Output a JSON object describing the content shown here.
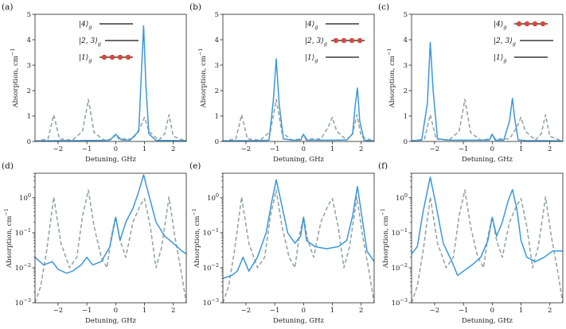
{
  "colors": {
    "solid": "#3a98d8",
    "dashed": "#95a5a6",
    "dot": "#d24a3c",
    "axis": "#222222"
  },
  "chart_data": [
    {
      "type": "line",
      "label": "(a)",
      "yscale": "linear",
      "xlim": [
        -2.8,
        2.45
      ],
      "ylim": [
        0,
        5
      ],
      "xticks": [
        -2,
        -1,
        0,
        1,
        2
      ],
      "yticks": [
        0,
        1,
        2,
        3,
        4,
        5
      ],
      "xlabel": "Detuning, GHz",
      "ylabel": "Absorption, cm",
      "ylabel_sup": "−1",
      "states": [
        "|4⟩",
        "|2, 3⟩",
        "|1⟩"
      ],
      "state_sub": "g",
      "populated_state": 2,
      "series": [
        {
          "style": "solid",
          "x": [
            -2.8,
            -2.1,
            -1.5,
            -1.0,
            -0.5,
            -0.2,
            0.0,
            0.2,
            0.5,
            0.8,
            0.9,
            0.97,
            1.05,
            1.15,
            1.4,
            1.8,
            2.45
          ],
          "y": [
            0.02,
            0.03,
            0.03,
            0.04,
            0.04,
            0.05,
            0.28,
            0.06,
            0.05,
            0.4,
            2.9,
            4.55,
            2.2,
            0.3,
            0.04,
            0.04,
            0.03
          ]
        },
        {
          "style": "dashed",
          "x": [
            -2.8,
            -2.35,
            -2.15,
            -1.95,
            -1.5,
            -1.15,
            -0.95,
            -0.75,
            -0.4,
            -0.1,
            0.0,
            0.1,
            0.6,
            0.85,
            1.0,
            1.15,
            1.5,
            1.7,
            1.85,
            2.0,
            2.45
          ],
          "y": [
            0.01,
            0.1,
            1.05,
            0.1,
            0.05,
            0.4,
            1.65,
            0.35,
            0.05,
            0.1,
            0.28,
            0.1,
            0.1,
            0.55,
            0.95,
            0.4,
            0.05,
            0.3,
            1.05,
            0.2,
            0.01
          ]
        }
      ]
    },
    {
      "type": "line",
      "label": "(b)",
      "yscale": "linear",
      "xlim": [
        -2.8,
        2.45
      ],
      "ylim": [
        0,
        5
      ],
      "xticks": [
        -2,
        -1,
        0,
        1,
        2
      ],
      "yticks": [
        0,
        1,
        2,
        3,
        4,
        5
      ],
      "xlabel": "Detuning, GHz",
      "ylabel": "Absorption, cm",
      "ylabel_sup": "−1",
      "states": [
        "|4⟩",
        "|2, 3⟩",
        "|1⟩"
      ],
      "state_sub": "g",
      "populated_state": 1,
      "series": [
        {
          "style": "solid",
          "x": [
            -2.8,
            -2.2,
            -1.5,
            -1.2,
            -1.05,
            -0.95,
            -0.85,
            -0.7,
            -0.4,
            -0.1,
            0.0,
            0.1,
            0.5,
            1.0,
            1.5,
            1.7,
            1.8,
            1.87,
            1.95,
            2.1,
            2.45
          ],
          "y": [
            0.02,
            0.03,
            0.03,
            0.05,
            1.6,
            3.25,
            1.5,
            0.1,
            0.05,
            0.05,
            0.28,
            0.05,
            0.05,
            0.05,
            0.06,
            0.3,
            1.5,
            2.1,
            0.8,
            0.05,
            0.02
          ]
        },
        {
          "style": "dashed",
          "x": [
            -2.8,
            -2.35,
            -2.15,
            -1.95,
            -1.5,
            -1.15,
            -0.95,
            -0.75,
            -0.4,
            -0.1,
            0.0,
            0.1,
            0.6,
            0.85,
            1.0,
            1.15,
            1.5,
            1.7,
            1.85,
            2.0,
            2.45
          ],
          "y": [
            0.01,
            0.1,
            1.05,
            0.1,
            0.05,
            0.4,
            1.65,
            0.35,
            0.05,
            0.1,
            0.28,
            0.1,
            0.1,
            0.55,
            0.95,
            0.4,
            0.05,
            0.3,
            1.05,
            0.2,
            0.01
          ]
        }
      ]
    },
    {
      "type": "line",
      "label": "(c)",
      "yscale": "linear",
      "xlim": [
        -2.8,
        2.45
      ],
      "ylim": [
        0,
        5
      ],
      "xticks": [
        -2,
        -1,
        0,
        1,
        2
      ],
      "yticks": [
        0,
        1,
        2,
        3,
        4,
        5
      ],
      "xlabel": "Detuning, GHz",
      "ylabel": "Absorption, cm",
      "ylabel_sup": "−1",
      "states": [
        "|4⟩",
        "|2, 3⟩",
        "|1⟩"
      ],
      "state_sub": "g",
      "populated_state": 0,
      "series": [
        {
          "style": "solid",
          "x": [
            -2.8,
            -2.45,
            -2.25,
            -2.15,
            -2.05,
            -1.9,
            -1.5,
            -1.0,
            -0.5,
            -0.1,
            0.0,
            0.1,
            0.4,
            0.6,
            0.7,
            0.78,
            0.9,
            1.2,
            1.8,
            2.45
          ],
          "y": [
            0.03,
            0.05,
            1.5,
            3.9,
            2.0,
            0.1,
            0.05,
            0.05,
            0.05,
            0.05,
            0.28,
            0.05,
            0.05,
            0.8,
            1.7,
            0.9,
            0.06,
            0.03,
            0.03,
            0.02
          ]
        },
        {
          "style": "dashed",
          "x": [
            -2.8,
            -2.35,
            -2.15,
            -1.95,
            -1.5,
            -1.15,
            -0.95,
            -0.75,
            -0.4,
            -0.1,
            0.0,
            0.1,
            0.6,
            0.85,
            1.0,
            1.15,
            1.5,
            1.7,
            1.85,
            2.0,
            2.45
          ],
          "y": [
            0.01,
            0.1,
            1.05,
            0.1,
            0.05,
            0.4,
            1.65,
            0.35,
            0.05,
            0.1,
            0.28,
            0.1,
            0.1,
            0.55,
            0.95,
            0.4,
            0.05,
            0.3,
            1.05,
            0.2,
            0.01
          ]
        }
      ]
    },
    {
      "type": "line",
      "label": "(d)",
      "yscale": "log",
      "xlim": [
        -2.8,
        2.45
      ],
      "ylim": [
        0.001,
        5
      ],
      "xticks": [
        -2,
        -1,
        0,
        1,
        2
      ],
      "yticks": [
        0.001,
        0.01,
        0.1,
        1
      ],
      "xlabel": "Detuning, GHz",
      "ylabel": "Absorption, cm",
      "ylabel_sup": "−1",
      "series": [
        {
          "style": "solid",
          "x": [
            -2.8,
            -2.5,
            -2.2,
            -2.0,
            -1.7,
            -1.5,
            -1.2,
            -1.0,
            -0.8,
            -0.5,
            -0.2,
            0.0,
            0.15,
            0.35,
            0.6,
            0.8,
            0.97,
            1.15,
            1.4,
            1.7,
            2.0,
            2.3,
            2.45
          ],
          "y": [
            0.02,
            0.012,
            0.015,
            0.009,
            0.007,
            0.008,
            0.012,
            0.02,
            0.012,
            0.015,
            0.04,
            0.28,
            0.06,
            0.2,
            0.5,
            1.5,
            4.5,
            1.2,
            0.2,
            0.08,
            0.05,
            0.03,
            0.025
          ]
        },
        {
          "style": "dashed",
          "x": [
            -2.8,
            -2.6,
            -2.4,
            -2.15,
            -1.9,
            -1.6,
            -1.35,
            -1.15,
            -0.95,
            -0.75,
            -0.5,
            -0.3,
            -0.15,
            0.0,
            0.15,
            0.35,
            0.6,
            0.85,
            1.0,
            1.2,
            1.4,
            1.6,
            1.85,
            2.05,
            2.25,
            2.45
          ],
          "y": [
            0.001,
            0.003,
            0.03,
            1.05,
            0.05,
            0.01,
            0.02,
            0.3,
            1.65,
            0.15,
            0.02,
            0.01,
            0.08,
            0.28,
            0.06,
            0.02,
            0.2,
            0.6,
            0.95,
            0.15,
            0.01,
            0.04,
            1.05,
            0.08,
            0.01,
            0.001
          ]
        }
      ]
    },
    {
      "type": "line",
      "label": "(e)",
      "yscale": "log",
      "xlim": [
        -2.8,
        2.45
      ],
      "ylim": [
        0.001,
        5
      ],
      "xticks": [
        -2,
        -1,
        0,
        1,
        2
      ],
      "yticks": [
        0.001,
        0.01,
        0.1,
        1
      ],
      "xlabel": "Detuning, GHz",
      "ylabel": "Absorption, cm",
      "ylabel_sup": "−1",
      "series": [
        {
          "style": "solid",
          "x": [
            -2.8,
            -2.5,
            -2.3,
            -2.1,
            -1.9,
            -1.6,
            -1.3,
            -1.1,
            -0.95,
            -0.8,
            -0.55,
            -0.3,
            -0.1,
            0.0,
            0.1,
            0.4,
            0.8,
            1.2,
            1.5,
            1.7,
            1.87,
            2.0,
            2.2,
            2.45
          ],
          "y": [
            0.005,
            0.006,
            0.008,
            0.02,
            0.008,
            0.02,
            0.1,
            0.8,
            3.25,
            0.9,
            0.1,
            0.05,
            0.08,
            0.28,
            0.06,
            0.04,
            0.035,
            0.04,
            0.06,
            0.3,
            2.1,
            0.4,
            0.03,
            0.015
          ]
        },
        {
          "style": "dashed",
          "x": [
            -2.8,
            -2.6,
            -2.4,
            -2.15,
            -1.9,
            -1.6,
            -1.35,
            -1.15,
            -0.95,
            -0.75,
            -0.5,
            -0.3,
            -0.15,
            0.0,
            0.15,
            0.35,
            0.6,
            0.85,
            1.0,
            1.2,
            1.4,
            1.6,
            1.85,
            2.05,
            2.25,
            2.45
          ],
          "y": [
            0.001,
            0.003,
            0.03,
            1.05,
            0.05,
            0.01,
            0.02,
            0.3,
            1.65,
            0.15,
            0.02,
            0.01,
            0.08,
            0.28,
            0.06,
            0.02,
            0.2,
            0.6,
            0.95,
            0.15,
            0.01,
            0.04,
            1.05,
            0.08,
            0.01,
            0.001
          ]
        }
      ]
    },
    {
      "type": "line",
      "label": "(f)",
      "yscale": "log",
      "xlim": [
        -2.8,
        2.45
      ],
      "ylim": [
        0.001,
        5
      ],
      "xticks": [
        -2,
        -1,
        0,
        1,
        2
      ],
      "yticks": [
        0.001,
        0.01,
        0.1,
        1
      ],
      "xlabel": "Detuning, GHz",
      "ylabel": "Absorption, cm",
      "ylabel_sup": "−1",
      "series": [
        {
          "style": "solid",
          "x": [
            -2.8,
            -2.6,
            -2.4,
            -2.15,
            -1.95,
            -1.7,
            -1.4,
            -1.2,
            -1.0,
            -0.7,
            -0.4,
            -0.15,
            0.0,
            0.15,
            0.35,
            0.55,
            0.7,
            0.85,
            1.0,
            1.2,
            1.5,
            1.8,
            2.1,
            2.45
          ],
          "y": [
            0.025,
            0.04,
            0.4,
            3.9,
            0.6,
            0.05,
            0.015,
            0.006,
            0.008,
            0.012,
            0.02,
            0.06,
            0.28,
            0.08,
            0.2,
            0.8,
            1.7,
            0.5,
            0.06,
            0.02,
            0.015,
            0.02,
            0.03,
            0.03
          ]
        },
        {
          "style": "dashed",
          "x": [
            -2.8,
            -2.6,
            -2.4,
            -2.15,
            -1.9,
            -1.6,
            -1.35,
            -1.15,
            -0.95,
            -0.75,
            -0.5,
            -0.3,
            -0.15,
            0.0,
            0.15,
            0.35,
            0.6,
            0.85,
            1.0,
            1.2,
            1.4,
            1.6,
            1.85,
            2.05,
            2.25,
            2.45
          ],
          "y": [
            0.001,
            0.003,
            0.03,
            1.05,
            0.05,
            0.01,
            0.02,
            0.3,
            1.65,
            0.15,
            0.02,
            0.01,
            0.08,
            0.28,
            0.06,
            0.02,
            0.2,
            0.6,
            0.95,
            0.15,
            0.01,
            0.04,
            1.05,
            0.08,
            0.01,
            0.001
          ]
        }
      ]
    }
  ]
}
